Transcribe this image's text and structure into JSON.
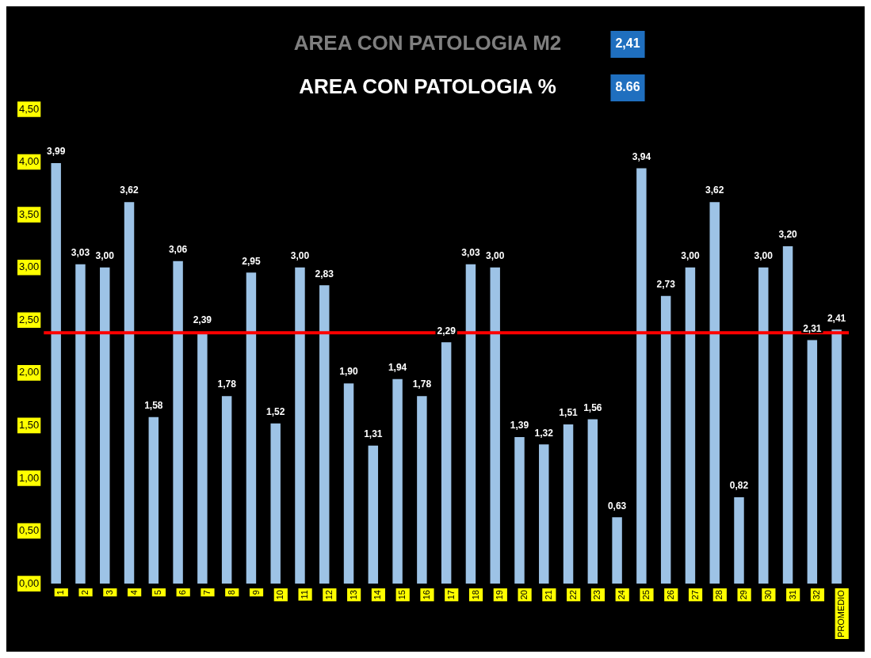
{
  "chart_data": {
    "type": "bar",
    "title": "AREA CON PATOLOGIA M2",
    "subtitle": "AREA CON PATOLOGIA %",
    "annotations": [
      "2,41",
      "8.66"
    ],
    "categories": [
      "1",
      "2",
      "3",
      "4",
      "5",
      "6",
      "7",
      "8",
      "9",
      "10",
      "11",
      "12",
      "13",
      "14",
      "15",
      "16",
      "17",
      "18",
      "19",
      "20",
      "21",
      "22",
      "23",
      "24",
      "25",
      "26",
      "27",
      "28",
      "29",
      "30",
      "31",
      "32",
      "PROMEDIO"
    ],
    "values": [
      3.99,
      3.03,
      3.0,
      3.62,
      1.58,
      3.06,
      2.39,
      1.78,
      2.95,
      1.52,
      3.0,
      2.83,
      1.9,
      1.31,
      1.94,
      1.78,
      2.29,
      3.03,
      3.0,
      1.39,
      1.32,
      1.51,
      1.56,
      0.63,
      3.94,
      2.73,
      3.0,
      3.62,
      0.82,
      3.0,
      3.2,
      2.31,
      2.41
    ],
    "value_labels": [
      "3,99",
      "3,03",
      "3,00",
      "3,62",
      "1,58",
      "3,06",
      "2,39",
      "1,78",
      "2,95",
      "1,52",
      "3,00",
      "2,83",
      "1,90",
      "1,31",
      "1,94",
      "1,78",
      "2,29",
      "3,03",
      "3,00",
      "1,39",
      "1,32",
      "1,51",
      "1,56",
      "0,63",
      "3,94",
      "2,73",
      "3,00",
      "3,62",
      "0,82",
      "3,00",
      "3,20",
      "2,31",
      "2,41"
    ],
    "color": "#9dc3e6",
    "ylim": [
      0,
      4.5
    ],
    "yticks": [
      {
        "value": 0,
        "label": "0,00"
      },
      {
        "value": 0.5,
        "label": "0,50"
      },
      {
        "value": 1,
        "label": "1,00"
      },
      {
        "value": 1.5,
        "label": "1,50"
      },
      {
        "value": 2,
        "label": "2,00"
      },
      {
        "value": 2.5,
        "label": "2,50"
      },
      {
        "value": 3,
        "label": "3,00"
      },
      {
        "value": 3.5,
        "label": "3,50"
      },
      {
        "value": 4,
        "label": "4,00"
      },
      {
        "value": 4.5,
        "label": "4,50"
      }
    ],
    "ref_lines": [
      {
        "axis": "y",
        "value": 2.38,
        "color": "#ff0000"
      }
    ],
    "grid": false,
    "legend": false
  }
}
